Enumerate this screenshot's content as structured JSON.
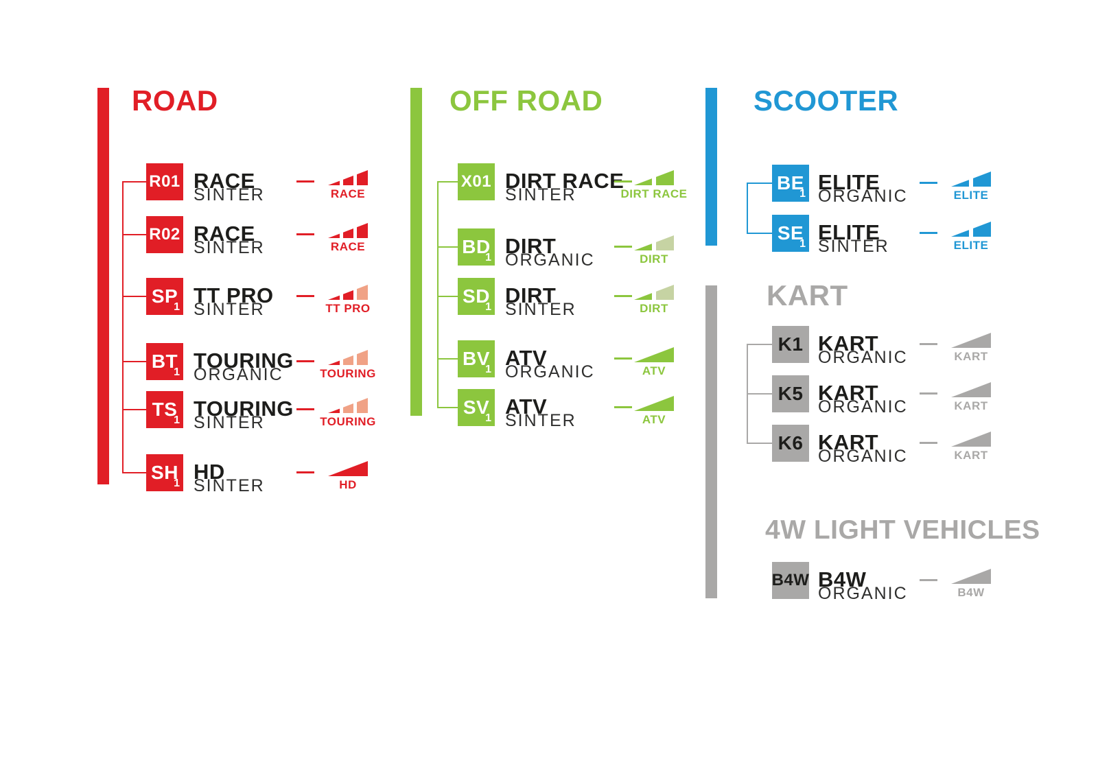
{
  "colors": {
    "background": "#ffffff",
    "name_text": "#1d1d1b",
    "compound_text": "#2f2f2e",
    "road_red": "#e11e26",
    "road_red_faded": "#f0a286",
    "offroad_green": "#8cc63e",
    "offroad_green_faded": "#c6d3a3",
    "scooter_blue": "#2097d4",
    "gray": "#a9a8a7"
  },
  "sections": [
    {
      "id": "road",
      "title": "ROAD",
      "color": "#e11e26",
      "faded_color": "#f0a286",
      "badge_text_color": "#ffffff",
      "items": [
        {
          "code": "R01",
          "code_sub": "",
          "name": "RACE",
          "compound": "SINTER",
          "icon": {
            "name": "performance-wedge-icon",
            "segments": 3,
            "filled": 3
          },
          "icon_label": "RACE"
        },
        {
          "code": "R02",
          "code_sub": "",
          "name": "RACE",
          "compound": "SINTER",
          "icon": {
            "name": "performance-wedge-icon",
            "segments": 3,
            "filled": 3
          },
          "icon_label": "RACE"
        },
        {
          "code": "SP",
          "code_sub": "1",
          "name": "TT PRO",
          "compound": "SINTER",
          "icon": {
            "name": "performance-wedge-icon",
            "segments": 3,
            "filled": 2
          },
          "icon_label": "TT PRO"
        },
        {
          "code": "BT",
          "code_sub": "1",
          "name": "TOURING",
          "compound": "ORGANIC",
          "icon": {
            "name": "performance-wedge-icon",
            "segments": 3,
            "filled": 1
          },
          "icon_label": "TOURING"
        },
        {
          "code": "TS",
          "code_sub": "1",
          "name": "TOURING",
          "compound": "SINTER",
          "icon": {
            "name": "performance-wedge-icon",
            "segments": 3,
            "filled": 1
          },
          "icon_label": "TOURING"
        },
        {
          "code": "SH",
          "code_sub": "1",
          "name": "HD",
          "compound": "SINTER",
          "icon": {
            "name": "performance-wedge-icon",
            "segments": 1,
            "filled": 1
          },
          "icon_label": "HD"
        }
      ]
    },
    {
      "id": "offroad",
      "title": "OFF ROAD",
      "color": "#8cc63e",
      "faded_color": "#c6d3a3",
      "badge_text_color": "#ffffff",
      "items": [
        {
          "code": "X01",
          "code_sub": "",
          "name": "DIRT RACE",
          "compound": "SINTER",
          "icon": {
            "name": "performance-wedge-icon",
            "segments": 2,
            "filled": 2
          },
          "icon_label": "DIRT RACE"
        },
        {
          "code": "BD",
          "code_sub": "1",
          "name": "DIRT",
          "compound": "ORGANIC",
          "icon": {
            "name": "performance-wedge-icon",
            "segments": 2,
            "filled": 1
          },
          "icon_label": "DIRT"
        },
        {
          "code": "SD",
          "code_sub": "1",
          "name": "DIRT",
          "compound": "SINTER",
          "icon": {
            "name": "performance-wedge-icon",
            "segments": 2,
            "filled": 1
          },
          "icon_label": "DIRT"
        },
        {
          "code": "BV",
          "code_sub": "1",
          "name": "ATV",
          "compound": "ORGANIC",
          "icon": {
            "name": "performance-wedge-icon",
            "segments": 1,
            "filled": 1
          },
          "icon_label": "ATV"
        },
        {
          "code": "SV",
          "code_sub": "1",
          "name": "ATV",
          "compound": "SINTER",
          "icon": {
            "name": "performance-wedge-icon",
            "segments": 1,
            "filled": 1
          },
          "icon_label": "ATV"
        }
      ]
    },
    {
      "id": "scooter",
      "title": "SCOOTER",
      "color": "#2097d4",
      "faded_color": "#9ed0ec",
      "badge_text_color": "#ffffff",
      "items": [
        {
          "code": "BE",
          "code_sub": "1",
          "name": "ELITE",
          "compound": "ORGANIC",
          "icon": {
            "name": "performance-wedge-icon",
            "segments": 2,
            "filled": 2
          },
          "icon_label": "ELITE"
        },
        {
          "code": "SE",
          "code_sub": "1",
          "name": "ELITE",
          "compound": "SINTER",
          "icon": {
            "name": "performance-wedge-icon",
            "segments": 2,
            "filled": 2
          },
          "icon_label": "ELITE"
        }
      ]
    },
    {
      "id": "kart",
      "title": "KART",
      "color": "#a9a8a7",
      "faded_color": "#d3d3d2",
      "badge_text_color": "#1d1d1b",
      "items": [
        {
          "code": "K1",
          "code_sub": "",
          "name": "KART",
          "compound": "ORGANIC",
          "icon": {
            "name": "performance-wedge-icon",
            "segments": 1,
            "filled": 1
          },
          "icon_label": "KART"
        },
        {
          "code": "K5",
          "code_sub": "",
          "name": "KART",
          "compound": "ORGANIC",
          "icon": {
            "name": "performance-wedge-icon",
            "segments": 1,
            "filled": 1
          },
          "icon_label": "KART"
        },
        {
          "code": "K6",
          "code_sub": "",
          "name": "KART",
          "compound": "ORGANIC",
          "icon": {
            "name": "performance-wedge-icon",
            "segments": 1,
            "filled": 1
          },
          "icon_label": "KART"
        }
      ]
    },
    {
      "id": "lv4w",
      "title": "4W LIGHT VEHICLES",
      "color": "#a9a8a7",
      "faded_color": "#d3d3d2",
      "badge_text_color": "#1d1d1b",
      "items": [
        {
          "code": "B4W",
          "code_sub": "",
          "name": "B4W",
          "compound": "ORGANIC",
          "icon": {
            "name": "performance-wedge-icon",
            "segments": 1,
            "filled": 1
          },
          "icon_label": "B4W"
        }
      ]
    }
  ]
}
